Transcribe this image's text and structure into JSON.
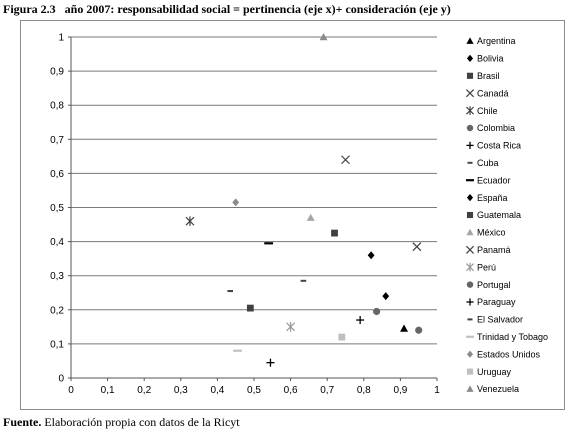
{
  "caption": {
    "figure": "Figura 2.3",
    "text": "año 2007:  responsabilidad social = pertinencia (eje x)+ consideración (eje y)"
  },
  "source": {
    "bold": "Fuente.",
    "text": " Elaboración propia con datos de la Ricyt"
  },
  "chart_data": {
    "type": "scatter",
    "title": "",
    "xlabel": "",
    "ylabel": "",
    "xlim": [
      0,
      1
    ],
    "ylim": [
      0,
      1
    ],
    "x_ticks": [
      "0",
      "0,1",
      "0,2",
      "0,3",
      "0,4",
      "0,5",
      "0,6",
      "0,7",
      "0,8",
      "0,9",
      "1"
    ],
    "y_ticks": [
      "0",
      "0,1",
      "0,2",
      "0,3",
      "0,4",
      "0,5",
      "0,6",
      "0,7",
      "0,8",
      "0,9",
      "1"
    ],
    "grid": "horizontal",
    "legend_position": "right",
    "series": [
      {
        "name": "Argentina",
        "marker": "triangle",
        "color": "#000000",
        "x": 0.91,
        "y": 0.145
      },
      {
        "name": "Bolivia",
        "marker": "diamond",
        "color": "#000000",
        "x": 0.86,
        "y": 0.24
      },
      {
        "name": "Brasil",
        "marker": "square",
        "color": "#404040",
        "x": 0.72,
        "y": 0.425
      },
      {
        "name": "Canadá",
        "marker": "x",
        "color": "#404040",
        "x": 0.75,
        "y": 0.64
      },
      {
        "name": "Chile",
        "marker": "star",
        "color": "#404040",
        "x": 0.325,
        "y": 0.46
      },
      {
        "name": "Colombia",
        "marker": "circle",
        "color": "#666666",
        "x": 0.95,
        "y": 0.14
      },
      {
        "name": "Costa Rica",
        "marker": "plus",
        "color": "#000000",
        "x": 0.79,
        "y": 0.17
      },
      {
        "name": "Cuba",
        "marker": "dash",
        "color": "#444444",
        "x": 0.635,
        "y": 0.285
      },
      {
        "name": "Ecuador",
        "marker": "longdash",
        "color": "#000000",
        "x": 0.54,
        "y": 0.395
      },
      {
        "name": "España",
        "marker": "diamond",
        "color": "#000000",
        "x": 0.82,
        "y": 0.36
      },
      {
        "name": "Guatemala",
        "marker": "square",
        "color": "#404040",
        "x": 0.49,
        "y": 0.205
      },
      {
        "name": "México",
        "marker": "triangle",
        "color": "#a6a6a6",
        "x": 0.655,
        "y": 0.47
      },
      {
        "name": "Panamá",
        "marker": "x",
        "color": "#404040",
        "x": 0.945,
        "y": 0.385
      },
      {
        "name": "Perú",
        "marker": "star",
        "color": "#999999",
        "x": 0.6,
        "y": 0.15
      },
      {
        "name": "Portugal",
        "marker": "circle",
        "color": "#666666",
        "x": 0.835,
        "y": 0.195
      },
      {
        "name": "Paraguay",
        "marker": "plus",
        "color": "#000000",
        "x": 0.545,
        "y": 0.045
      },
      {
        "name": "El Salvador",
        "marker": "dash",
        "color": "#404040",
        "x": 0.435,
        "y": 0.255
      },
      {
        "name": "Trinidad y Tobago",
        "marker": "longdash",
        "color": "#c0c0c0",
        "x": 0.455,
        "y": 0.08
      },
      {
        "name": "Estados Unidos",
        "marker": "diamond",
        "color": "#8c8c8c",
        "x": 0.45,
        "y": 0.515
      },
      {
        "name": "Uruguay",
        "marker": "square",
        "color": "#bfbfbf",
        "x": 0.74,
        "y": 0.12
      },
      {
        "name": "Venezuela",
        "marker": "triangle",
        "color": "#8c8c8c",
        "x": 0.69,
        "y": 1.0
      }
    ]
  }
}
